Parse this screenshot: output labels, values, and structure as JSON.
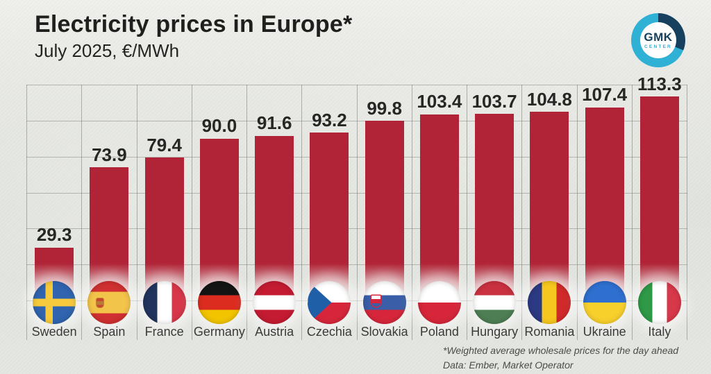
{
  "header": {
    "title": "Electricity prices in Europe*",
    "subtitle": "July 2025, €/MWh"
  },
  "logo": {
    "text_top": "GMK",
    "text_bottom": "CENTER",
    "ring_color": "#2fb0d5",
    "ring_dark_color": "#16405e"
  },
  "chart_data": {
    "type": "bar",
    "title": "Electricity prices in Europe*",
    "period": "July 2025",
    "unit": "€/MWh",
    "categories": [
      "Sweden",
      "Spain",
      "France",
      "Germany",
      "Austria",
      "Czechia",
      "Slovakia",
      "Poland",
      "Hungary",
      "Romania",
      "Ukraine",
      "Italy"
    ],
    "values": [
      29.3,
      73.9,
      79.4,
      90.0,
      91.6,
      93.2,
      99.8,
      103.4,
      103.7,
      104.8,
      107.4,
      113.3
    ],
    "ylim": [
      0,
      120
    ],
    "grid_step": 20,
    "grid": "on",
    "legend": "none",
    "bar_color": "#b12336",
    "flags": [
      {
        "country": "Sweden",
        "type": "nordic",
        "bg": "#3064af",
        "cross": "#f6ca3c"
      },
      {
        "country": "Spain",
        "type": "h",
        "stripes": [
          [
            "#d03031",
            1
          ],
          [
            "#f3c44a",
            2
          ],
          [
            "#d03031",
            1
          ]
        ],
        "emblem": "spain"
      },
      {
        "country": "France",
        "type": "v",
        "stripes": [
          [
            "#22345e",
            1
          ],
          [
            "#ffffff",
            1
          ],
          [
            "#d8374a",
            1
          ]
        ]
      },
      {
        "country": "Germany",
        "type": "h",
        "stripes": [
          [
            "#141414",
            1
          ],
          [
            "#dc2c20",
            1
          ],
          [
            "#f2c400",
            1
          ]
        ]
      },
      {
        "country": "Austria",
        "type": "h",
        "stripes": [
          [
            "#c41b32",
            1
          ],
          [
            "#ffffff",
            1
          ],
          [
            "#c41b32",
            1
          ]
        ]
      },
      {
        "country": "Czechia",
        "type": "czech",
        "top": "#ffffff",
        "bottom": "#d7263b",
        "triangle": "#1f5fa8"
      },
      {
        "country": "Slovakia",
        "type": "h",
        "stripes": [
          [
            "#ffffff",
            1
          ],
          [
            "#3a5ea8",
            1
          ],
          [
            "#d7263b",
            1
          ]
        ],
        "emblem": "slovakia"
      },
      {
        "country": "Poland",
        "type": "h",
        "stripes": [
          [
            "#ffffff",
            1
          ],
          [
            "#d7263b",
            1
          ]
        ]
      },
      {
        "country": "Hungary",
        "type": "h",
        "stripes": [
          [
            "#ca3140",
            1
          ],
          [
            "#ffffff",
            1
          ],
          [
            "#4e7e54",
            1
          ]
        ]
      },
      {
        "country": "Romania",
        "type": "v",
        "stripes": [
          [
            "#2c3a84",
            1
          ],
          [
            "#f6c71f",
            1
          ],
          [
            "#d02a2a",
            1
          ]
        ]
      },
      {
        "country": "Ukraine",
        "type": "h",
        "stripes": [
          [
            "#2e6fd0",
            1
          ],
          [
            "#f8d02c",
            1
          ]
        ]
      },
      {
        "country": "Italy",
        "type": "v",
        "stripes": [
          [
            "#2e9a47",
            1
          ],
          [
            "#ffffff",
            1
          ],
          [
            "#d7394a",
            1
          ]
        ]
      }
    ]
  },
  "footer": {
    "note": "*Weighted average wholesale prices for the day ahead",
    "source": "Data: Ember, Market Operator"
  }
}
